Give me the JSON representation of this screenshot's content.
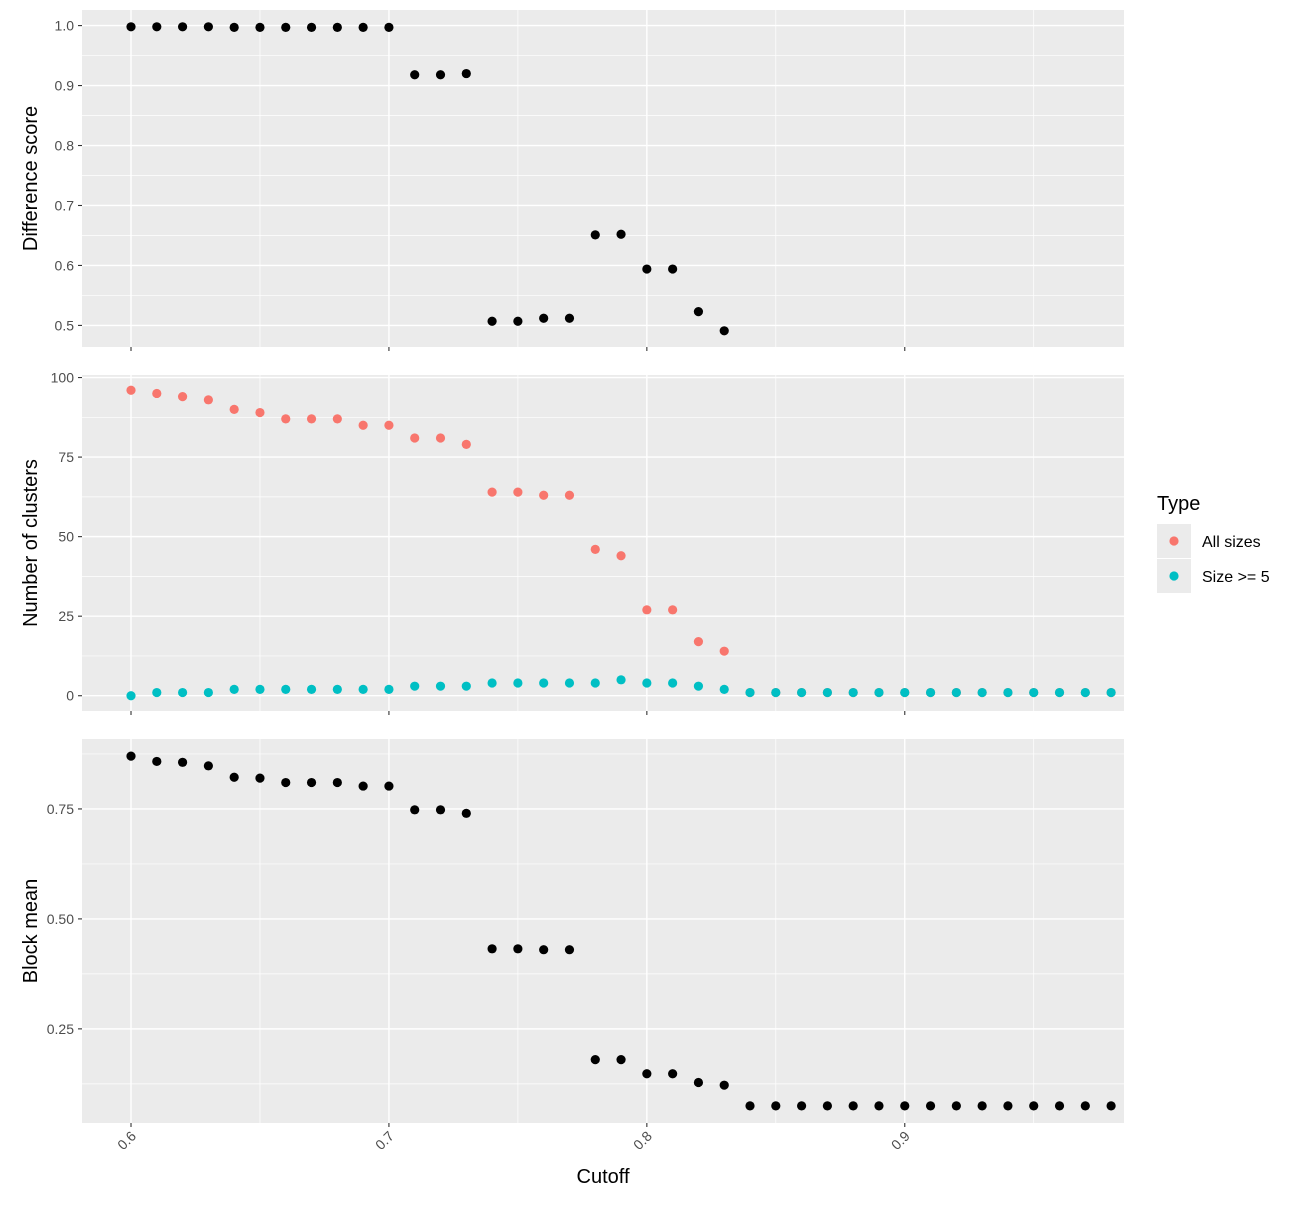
{
  "chart_data": {
    "type": "scatter",
    "xlabel": "Cutoff",
    "xlim": [
      0.581,
      0.985
    ],
    "x_ticks": [
      "0.6",
      "0.7",
      "0.8",
      "0.9"
    ],
    "grid": true,
    "colors": {
      "panel_bg": "#ebebeb",
      "grid": "#ffffff",
      "default_point": "#000000"
    },
    "legend": {
      "title": "Type",
      "placement": "right",
      "entries": [
        {
          "label": "All sizes",
          "color": "#f8766d"
        },
        {
          "label": "Size >= 5",
          "color": "#00bfc4"
        }
      ]
    },
    "panels": [
      {
        "id": "difference",
        "ylabel": "Difference score",
        "ylim": [
          0.464,
          1.026
        ],
        "y_ticks": [
          "0.5",
          "0.6",
          "0.7",
          "0.8",
          "0.9",
          "1.0"
        ],
        "series": [
          {
            "color": "#000000",
            "x": [
              0.6,
              0.61,
              0.62,
              0.63,
              0.64,
              0.65,
              0.66,
              0.67,
              0.68,
              0.69,
              0.7,
              0.71,
              0.72,
              0.73,
              0.74,
              0.75,
              0.76,
              0.77,
              0.78,
              0.79,
              0.8,
              0.81,
              0.82,
              0.83
            ],
            "y": [
              0.998,
              0.998,
              0.998,
              0.998,
              0.997,
              0.997,
              0.997,
              0.997,
              0.997,
              0.997,
              0.997,
              0.918,
              0.918,
              0.92,
              0.507,
              0.507,
              0.512,
              0.512,
              0.651,
              0.652,
              0.594,
              0.594,
              0.523,
              0.491
            ]
          }
        ]
      },
      {
        "id": "clusters",
        "ylabel": "Number of clusters",
        "ylim": [
          -4.8,
          100.8
        ],
        "y_ticks": [
          "0",
          "25",
          "50",
          "75",
          "100"
        ],
        "series": [
          {
            "name": "All sizes",
            "color": "#f8766d",
            "x": [
              0.6,
              0.61,
              0.62,
              0.63,
              0.64,
              0.65,
              0.66,
              0.67,
              0.68,
              0.69,
              0.7,
              0.71,
              0.72,
              0.73,
              0.74,
              0.75,
              0.76,
              0.77,
              0.78,
              0.79,
              0.8,
              0.81,
              0.82,
              0.83,
              0.84,
              0.85,
              0.86,
              0.87,
              0.88,
              0.89,
              0.9,
              0.91,
              0.92,
              0.93,
              0.94,
              0.95,
              0.96,
              0.97,
              0.98
            ],
            "y": [
              96,
              95,
              94,
              93,
              90,
              89,
              87,
              87,
              87,
              85,
              85,
              81,
              81,
              79,
              64,
              64,
              63,
              63,
              46,
              44,
              27,
              27,
              17,
              14,
              1,
              1,
              1,
              1,
              1,
              1,
              1,
              1,
              1,
              1,
              1,
              1,
              1,
              1,
              1
            ]
          },
          {
            "name": "Size >= 5",
            "color": "#00bfc4",
            "x": [
              0.6,
              0.61,
              0.62,
              0.63,
              0.64,
              0.65,
              0.66,
              0.67,
              0.68,
              0.69,
              0.7,
              0.71,
              0.72,
              0.73,
              0.74,
              0.75,
              0.76,
              0.77,
              0.78,
              0.79,
              0.8,
              0.81,
              0.82,
              0.83,
              0.84,
              0.85,
              0.86,
              0.87,
              0.88,
              0.89,
              0.9,
              0.91,
              0.92,
              0.93,
              0.94,
              0.95,
              0.96,
              0.97,
              0.98
            ],
            "y": [
              0,
              1,
              1,
              1,
              2,
              2,
              2,
              2,
              2,
              2,
              2,
              3,
              3,
              3,
              4,
              4,
              4,
              4,
              4,
              5,
              4,
              4,
              3,
              2,
              1,
              1,
              1,
              1,
              1,
              1,
              1,
              1,
              1,
              1,
              1,
              1,
              1,
              1,
              1
            ]
          }
        ]
      },
      {
        "id": "blockmean",
        "ylabel": "Block mean",
        "ylim": [
          0.036,
          0.909
        ],
        "y_ticks": [
          "0.25",
          "0.50",
          "0.75"
        ],
        "series": [
          {
            "color": "#000000",
            "x": [
              0.6,
              0.61,
              0.62,
              0.63,
              0.64,
              0.65,
              0.66,
              0.67,
              0.68,
              0.69,
              0.7,
              0.71,
              0.72,
              0.73,
              0.74,
              0.75,
              0.76,
              0.77,
              0.78,
              0.79,
              0.8,
              0.81,
              0.82,
              0.83,
              0.84,
              0.85,
              0.86,
              0.87,
              0.88,
              0.89,
              0.9,
              0.91,
              0.92,
              0.93,
              0.94,
              0.95,
              0.96,
              0.97,
              0.98
            ],
            "y": [
              0.87,
              0.858,
              0.856,
              0.848,
              0.822,
              0.82,
              0.81,
              0.81,
              0.81,
              0.802,
              0.802,
              0.748,
              0.748,
              0.74,
              0.432,
              0.432,
              0.43,
              0.43,
              0.18,
              0.18,
              0.148,
              0.148,
              0.128,
              0.122,
              0.075,
              0.075,
              0.075,
              0.075,
              0.075,
              0.075,
              0.075,
              0.075,
              0.075,
              0.075,
              0.075,
              0.075,
              0.075,
              0.075,
              0.075
            ]
          }
        ]
      }
    ]
  }
}
